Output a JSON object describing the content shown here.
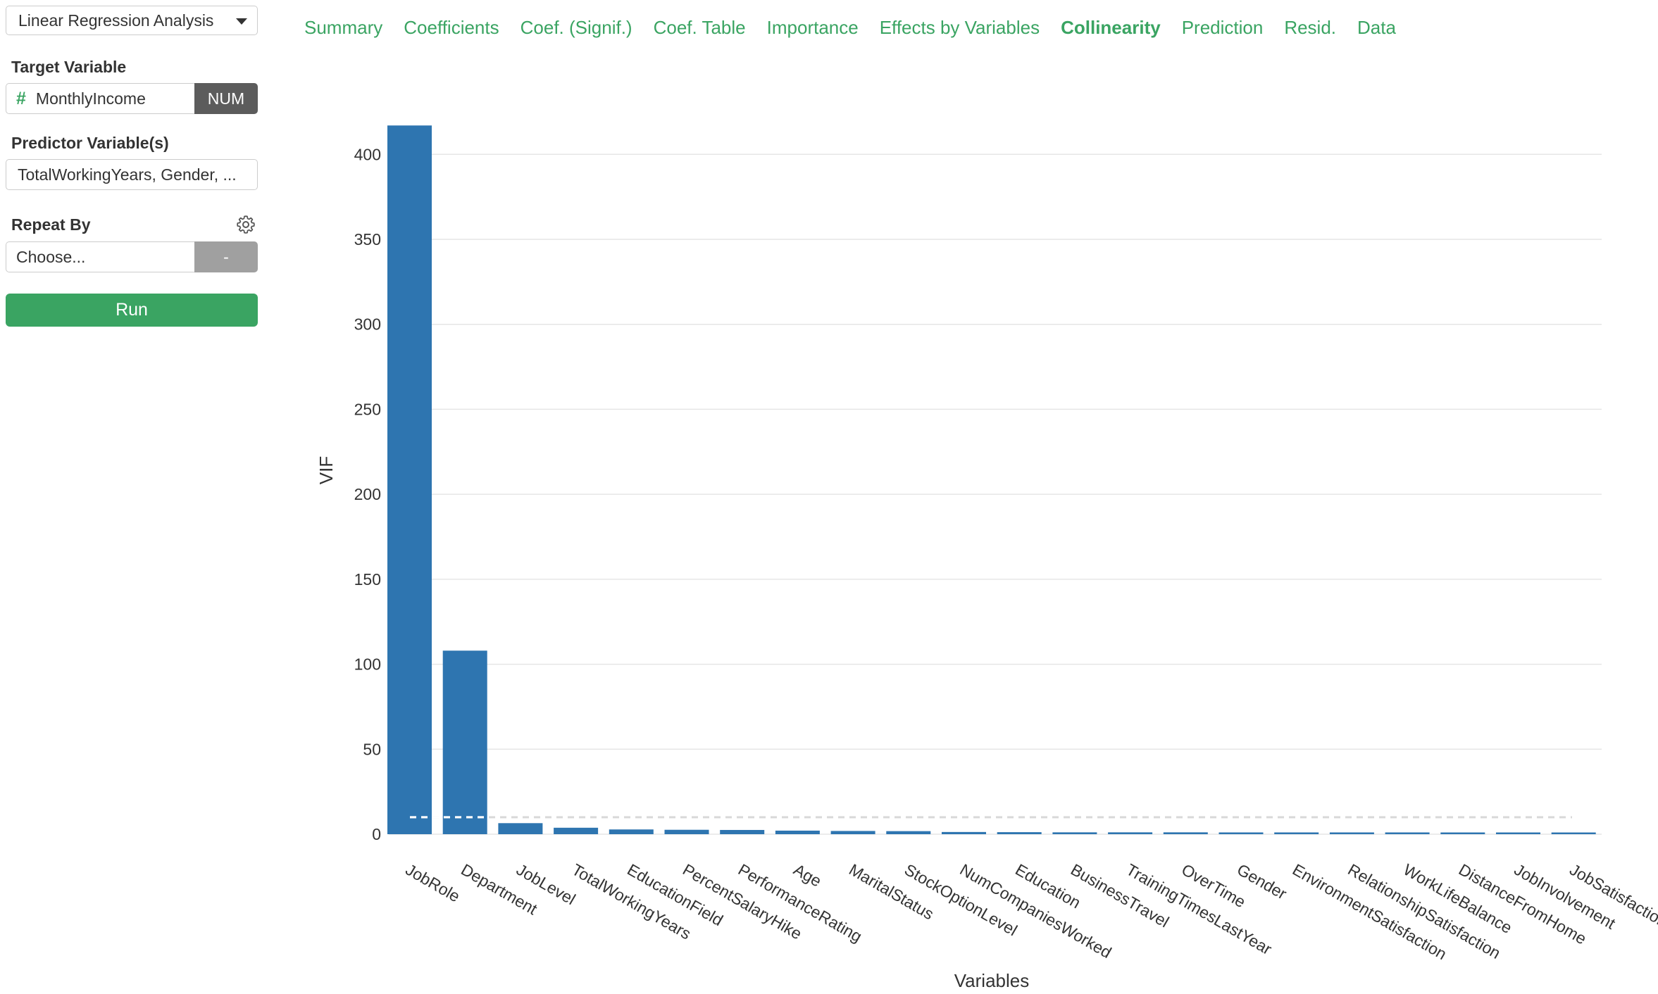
{
  "sidebar": {
    "analysis_type": "Linear Regression Analysis",
    "target_label": "Target Variable",
    "target_value": "MonthlyIncome",
    "target_type": "NUM",
    "predictor_label": "Predictor Variable(s)",
    "predictor_value": "TotalWorkingYears, Gender, ...",
    "repeat_label": "Repeat By",
    "repeat_placeholder": "Choose...",
    "repeat_tag": "-",
    "run_label": "Run"
  },
  "tabs": [
    {
      "label": "Summary",
      "active": false
    },
    {
      "label": "Coefficients",
      "active": false
    },
    {
      "label": "Coef. (Signif.)",
      "active": false
    },
    {
      "label": "Coef. Table",
      "active": false
    },
    {
      "label": "Importance",
      "active": false
    },
    {
      "label": "Effects by Variables",
      "active": false
    },
    {
      "label": "Collinearity",
      "active": true
    },
    {
      "label": "Prediction",
      "active": false
    },
    {
      "label": "Resid.",
      "active": false
    },
    {
      "label": "Data",
      "active": false
    }
  ],
  "colors": {
    "accent": "#3aa462",
    "bar": "#2e75b0",
    "threshold": "#cccccc"
  },
  "chart_data": {
    "type": "bar",
    "xlabel": "Variables",
    "ylabel": "VIF",
    "ylim": [
      0,
      420
    ],
    "yticks": [
      0,
      50,
      100,
      150,
      200,
      250,
      300,
      350,
      400
    ],
    "grid": true,
    "threshold": 10,
    "categories": [
      "JobRole",
      "Department",
      "JobLevel",
      "TotalWorkingYears",
      "EducationField",
      "PercentSalaryHike",
      "PerformanceRating",
      "Age",
      "MaritalStatus",
      "StockOptionLevel",
      "NumCompaniesWorked",
      "Education",
      "BusinessTravel",
      "TrainingTimesLastYear",
      "OverTime",
      "Gender",
      "EnvironmentSatisfaction",
      "RelationshipSatisfaction",
      "WorkLifeBalance",
      "DistanceFromHome",
      "JobInvolvement",
      "JobSatisfaction"
    ],
    "values": [
      417,
      108,
      6.5,
      3.8,
      2.8,
      2.6,
      2.5,
      2.1,
      1.9,
      1.8,
      1.3,
      1.2,
      1.1,
      1.1,
      1.1,
      1.05,
      1.05,
      1.05,
      1.05,
      1.03,
      1.03,
      1.02
    ]
  }
}
